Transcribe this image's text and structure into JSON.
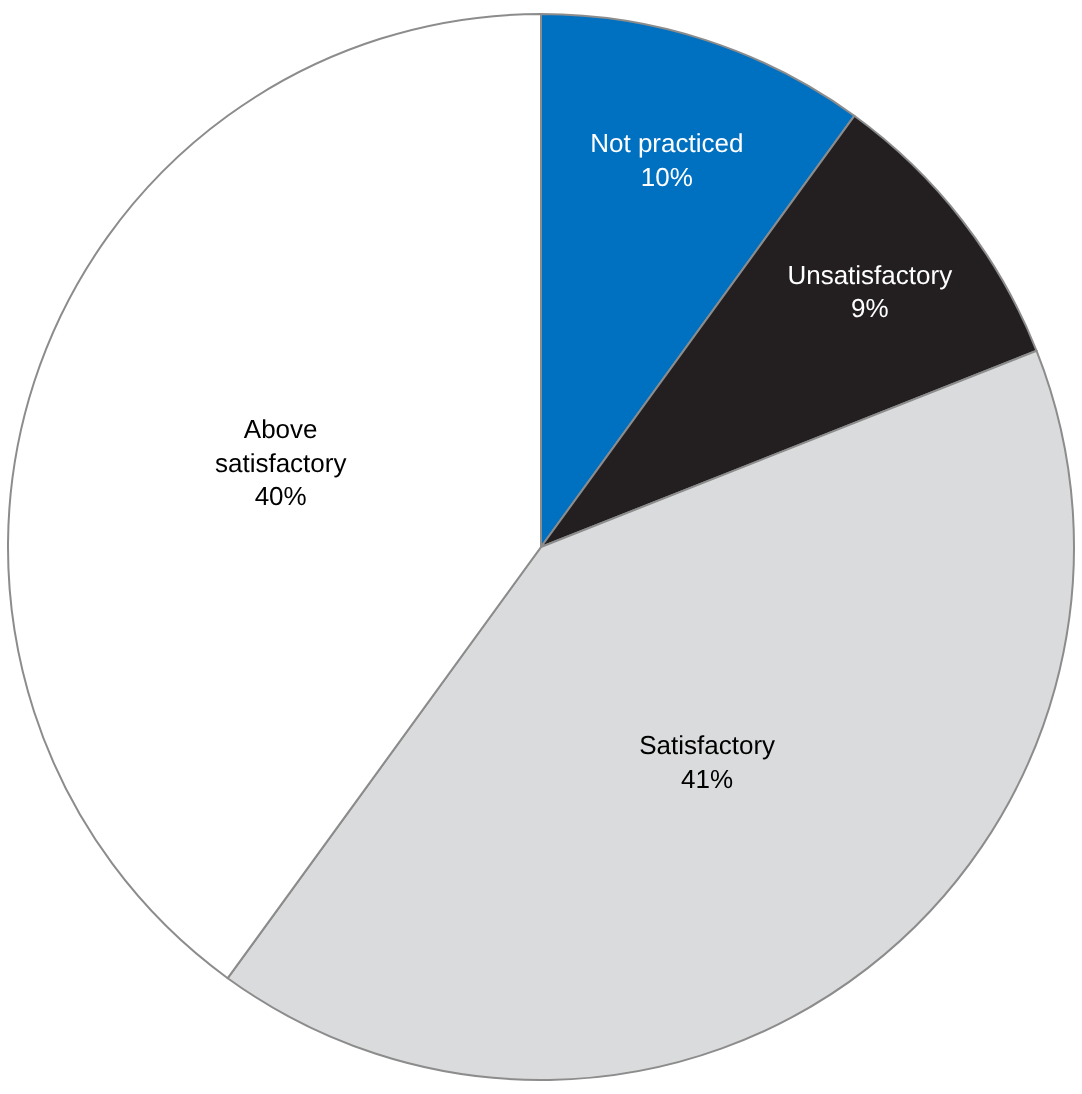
{
  "chart_data": {
    "type": "pie",
    "categories": [
      "Not practiced",
      "Unsatisfactory",
      "Satisfactory",
      "Above satisfactory"
    ],
    "values": [
      10,
      9,
      41,
      40
    ],
    "value_labels": [
      "10%",
      "9%",
      "41%",
      "40%"
    ],
    "colors": [
      "#0070c0",
      "#231f20",
      "#dadbdc",
      "#ffffff"
    ],
    "legend": false
  }
}
